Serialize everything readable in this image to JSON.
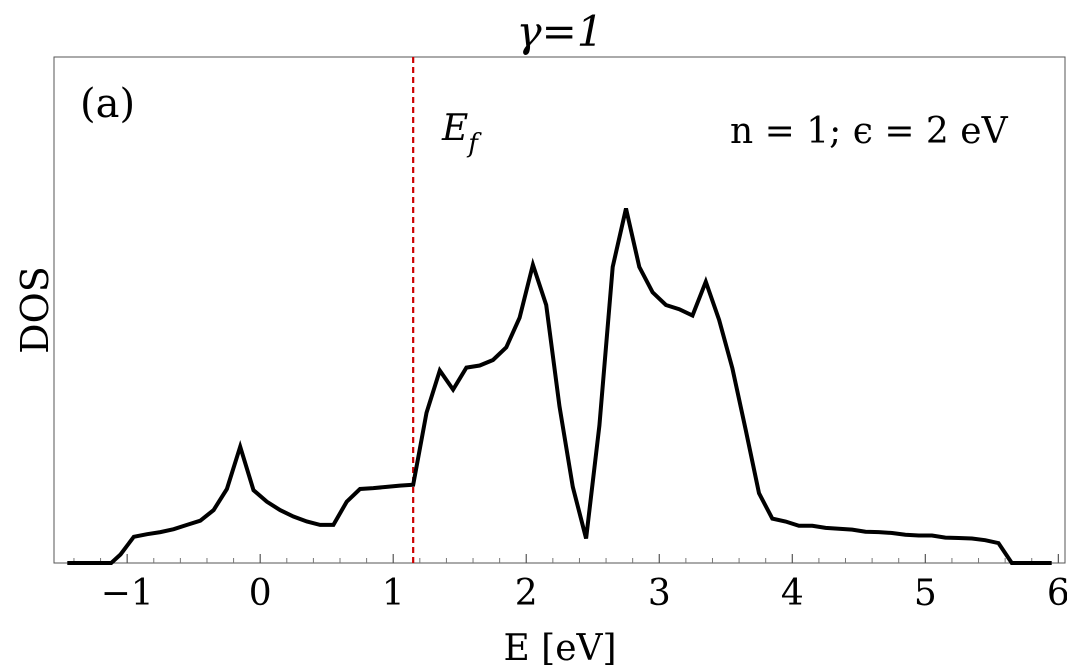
{
  "chart_data": {
    "type": "line",
    "title": "γ=1",
    "panel_label": "(a)",
    "annotation": "n = 1; ϵ = 2 eV",
    "fermi_label": "E",
    "fermi_subscript": "f",
    "fermi_energy": 1.15,
    "xlabel": "E [eV]",
    "ylabel": "DOS",
    "xlim": [
      -1.55,
      6.05
    ],
    "ylim": [
      0,
      1.0
    ],
    "x_ticks": [
      -1,
      0,
      1,
      2,
      3,
      4,
      5,
      6
    ],
    "x_tick_labels": [
      "−1",
      "0",
      "1",
      "2",
      "3",
      "4",
      "5",
      "6"
    ],
    "y_ticks_shown": false,
    "grid": false,
    "colors": {
      "line": "#000000",
      "fermi_line": "#cc0000",
      "frame": "#555555"
    },
    "series": [
      {
        "x": [
          -1.45,
          -1.12,
          -1.05,
          -0.95,
          -0.85,
          -0.75,
          -0.65,
          -0.55,
          -0.45,
          -0.35,
          -0.25,
          -0.15,
          -0.05,
          0.05,
          0.15,
          0.25,
          0.35,
          0.45,
          0.55,
          0.65,
          0.75,
          0.85,
          0.95,
          1.05,
          1.15,
          1.25,
          1.35,
          1.45,
          1.55,
          1.65,
          1.75,
          1.85,
          1.95,
          2.05,
          2.15,
          2.25,
          2.35,
          2.45,
          2.55,
          2.65,
          2.75,
          2.85,
          2.95,
          3.05,
          3.15,
          3.25,
          3.35,
          3.45,
          3.55,
          3.65,
          3.75,
          3.85,
          3.95,
          4.05,
          4.15,
          4.25,
          4.35,
          4.45,
          4.55,
          4.65,
          4.75,
          4.85,
          4.95,
          5.05,
          5.15,
          5.25,
          5.35,
          5.45,
          5.55,
          5.65,
          5.75,
          5.95
        ],
        "y": [
          0.0,
          0.0,
          0.02,
          0.062,
          0.068,
          0.073,
          0.08,
          0.09,
          0.1,
          0.125,
          0.175,
          0.275,
          0.172,
          0.145,
          0.125,
          0.11,
          0.098,
          0.09,
          0.09,
          0.145,
          0.175,
          0.177,
          0.18,
          0.183,
          0.185,
          0.355,
          0.455,
          0.41,
          0.462,
          0.467,
          0.48,
          0.51,
          0.58,
          0.705,
          0.61,
          0.37,
          0.18,
          0.058,
          0.325,
          0.7,
          0.838,
          0.7,
          0.64,
          0.61,
          0.6,
          0.585,
          0.665,
          0.575,
          0.46,
          0.315,
          0.165,
          0.105,
          0.098,
          0.088,
          0.088,
          0.083,
          0.081,
          0.079,
          0.074,
          0.073,
          0.071,
          0.067,
          0.065,
          0.065,
          0.06,
          0.059,
          0.058,
          0.054,
          0.047,
          0.0,
          0.0,
          0.0
        ]
      }
    ]
  }
}
